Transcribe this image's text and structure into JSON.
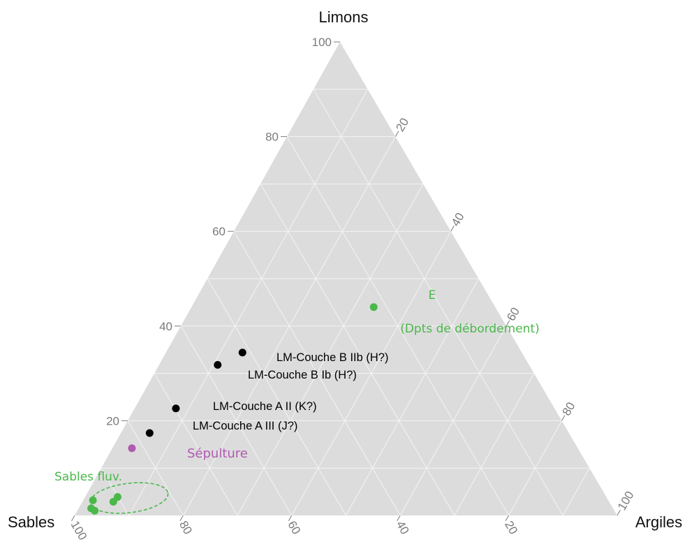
{
  "chart_data": {
    "type": "scatter",
    "subtype": "ternary",
    "axes": {
      "top": "Limons",
      "left": "Sables",
      "right": "Argiles"
    },
    "tick_values": [
      20,
      40,
      60,
      80,
      100
    ],
    "tick_labels": {
      "limons": [
        "20",
        "40",
        "60",
        "80",
        "100"
      ],
      "argiles": [
        "20",
        "40",
        "60",
        "80",
        "100"
      ],
      "sables": [
        "20",
        "40",
        "60",
        "80",
        "100"
      ]
    },
    "grid": true,
    "grid_step": 10,
    "colors": {
      "triangle": "#dcdcdd",
      "grid": "#f4f4f4",
      "black": "#000000",
      "green": "#4bb84a",
      "purple": "#b05ab0",
      "tick": "#7a7a7a"
    },
    "points": [
      {
        "label": "LM-Couche B IIb (H?)",
        "color": "black",
        "limons": 34.4,
        "argiles": 14.1,
        "sables": 51.5
      },
      {
        "label": "LM-Couche B Ib (H?)",
        "color": "black",
        "limons": 31.8,
        "argiles": 10.8,
        "sables": 57.4
      },
      {
        "label": "LM-Couche A II (K?)",
        "color": "black",
        "limons": 22.6,
        "argiles": 7.6,
        "sables": 69.8
      },
      {
        "label": "LM-Couche A III (J?)",
        "color": "black",
        "limons": 17.4,
        "argiles": 5.3,
        "sables": 77.3
      },
      {
        "label": "Sépulture",
        "color": "purple",
        "limons": 14.2,
        "argiles": 3.6,
        "sables": 82.2
      },
      {
        "label": "E",
        "color": "green",
        "limons": 44.0,
        "argiles": 33.6,
        "sables": 22.4
      },
      {
        "label": "",
        "color": "green",
        "limons": 3.2,
        "argiles": 1.8,
        "sables": 95.0
      },
      {
        "label": "",
        "color": "green",
        "limons": 1.5,
        "argiles": 2.3,
        "sables": 96.2
      },
      {
        "label": "",
        "color": "green",
        "limons": 1.0,
        "argiles": 3.2,
        "sables": 95.8
      },
      {
        "label": "",
        "color": "green",
        "limons": 2.9,
        "argiles": 5.7,
        "sables": 91.4
      },
      {
        "label": "",
        "color": "green",
        "limons": 3.9,
        "argiles": 6.0,
        "sables": 90.1
      }
    ],
    "annotations": [
      {
        "text": "(Dpts de débordement)",
        "color": "green",
        "near": "E"
      },
      {
        "text": "Sables fluv.",
        "color": "green",
        "near": "green cluster near Sables corner"
      }
    ]
  }
}
